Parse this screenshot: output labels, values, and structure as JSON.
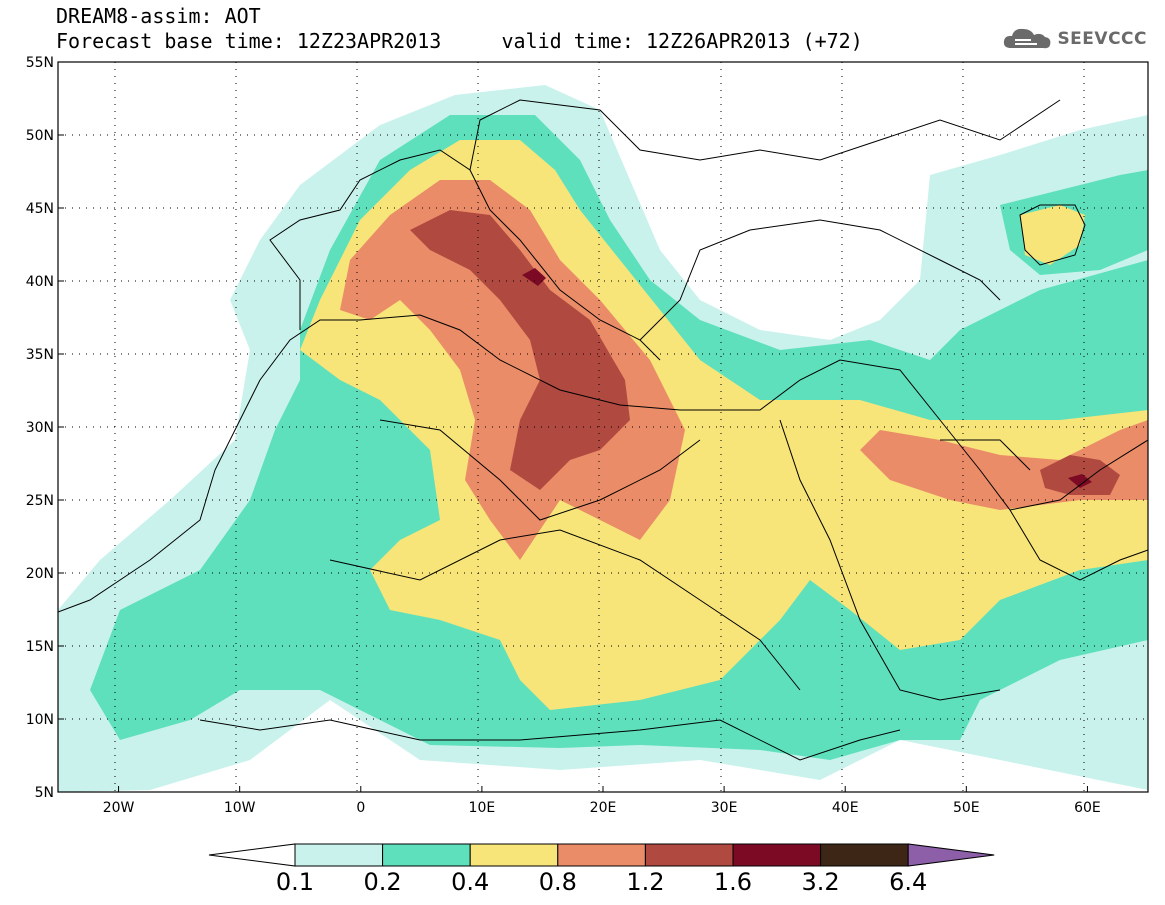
{
  "header": {
    "line1": "DREAM8-assim: AOT",
    "line2": "Forecast base time: 12Z23APR2013     valid time: 12Z26APR2013 (+72)"
  },
  "logo": {
    "text": "SEEVCCC",
    "icon": "cloud-icon"
  },
  "map": {
    "projection": "lat-lon",
    "lon_range": [
      -25,
      65
    ],
    "lat_range": [
      5,
      55
    ],
    "lon_ticks": [
      {
        "value": -20,
        "label": "20W"
      },
      {
        "value": -10,
        "label": "10W"
      },
      {
        "value": 0,
        "label": "0"
      },
      {
        "value": 10,
        "label": "10E"
      },
      {
        "value": 20,
        "label": "20E"
      },
      {
        "value": 30,
        "label": "30E"
      },
      {
        "value": 40,
        "label": "40E"
      },
      {
        "value": 50,
        "label": "50E"
      },
      {
        "value": 60,
        "label": "60E"
      }
    ],
    "lat_ticks": [
      {
        "value": 55,
        "label": "55N"
      },
      {
        "value": 50,
        "label": "50N"
      },
      {
        "value": 45,
        "label": "45N"
      },
      {
        "value": 40,
        "label": "40N"
      },
      {
        "value": 35,
        "label": "35N"
      },
      {
        "value": 30,
        "label": "30N"
      },
      {
        "value": 25,
        "label": "25N"
      },
      {
        "value": 20,
        "label": "20N"
      },
      {
        "value": 15,
        "label": "15N"
      },
      {
        "value": 10,
        "label": "10N"
      },
      {
        "value": 5,
        "label": "5N"
      }
    ],
    "grid": "dotted"
  },
  "colorbar": {
    "levels": [
      "0.1",
      "0.2",
      "0.4",
      "0.8",
      "1.2",
      "1.6",
      "3.2",
      "6.4"
    ],
    "colors": [
      "#ffffff",
      "#c9f2ec",
      "#5ee0bc",
      "#f7e57a",
      "#ea8c68",
      "#b0493f",
      "#7d0a25",
      "#3d2616",
      "#8c5fa8"
    ]
  }
}
